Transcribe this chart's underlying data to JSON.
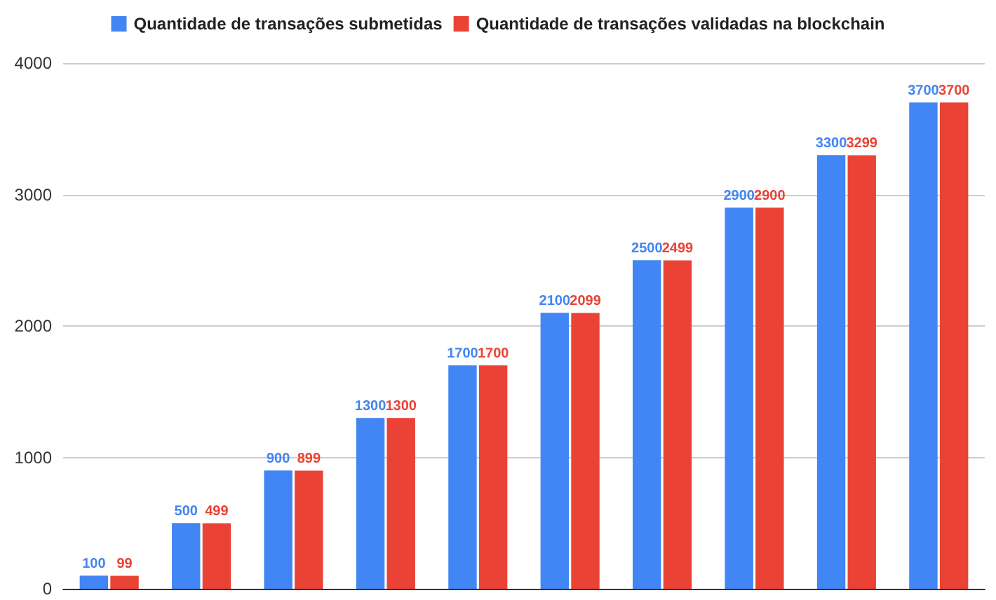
{
  "chart_data": {
    "type": "bar",
    "categories": [
      null,
      null,
      null,
      null,
      null,
      null,
      null,
      null,
      null,
      null
    ],
    "series": [
      {
        "name": "Quantidade de transações submetidas",
        "color": "#4285f4",
        "values": [
          100,
          500,
          900,
          1300,
          1700,
          2100,
          2500,
          2900,
          3300,
          3700
        ]
      },
      {
        "name": "Quantidade de transações validadas na blockchain",
        "color": "#ea4335",
        "values": [
          99,
          499,
          899,
          1300,
          1700,
          2099,
          2499,
          2900,
          3299,
          3700
        ]
      }
    ],
    "ylim": [
      0,
      4000
    ],
    "yticks": [
      0,
      1000,
      2000,
      3000,
      4000
    ],
    "grid": "y",
    "legend": "top",
    "data_labels": true
  }
}
